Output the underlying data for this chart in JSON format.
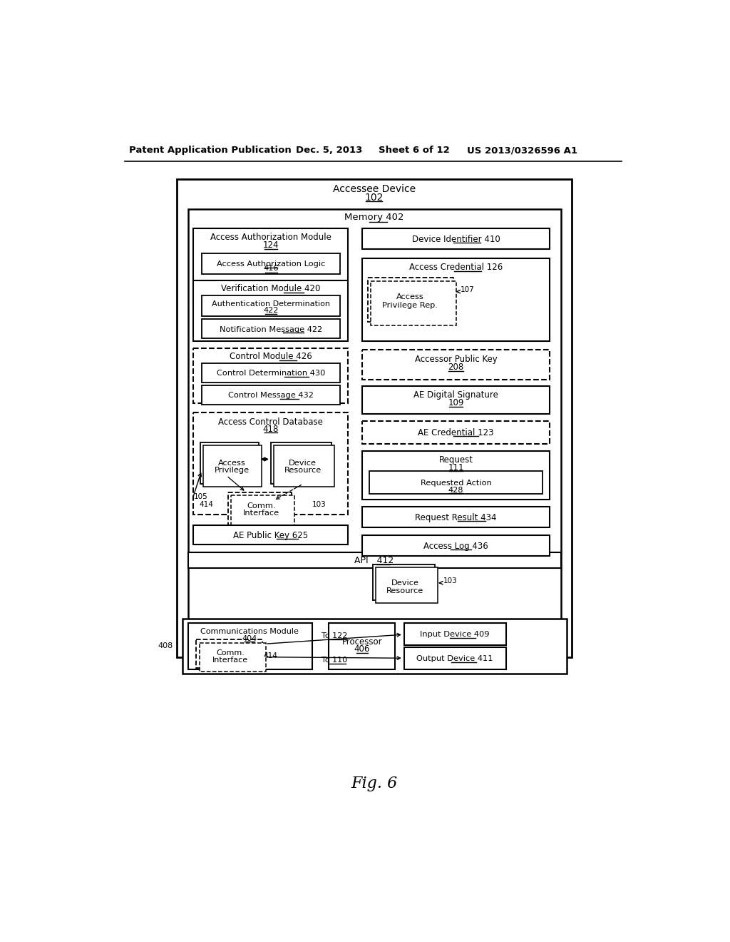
{
  "bg_color": "#ffffff",
  "header_left": "Patent Application Publication",
  "header_mid1": "Dec. 5, 2013",
  "header_mid2": "Sheet 6 of 12",
  "header_right": "US 2013/0326596 A1",
  "fig_caption": "Fig. 6"
}
